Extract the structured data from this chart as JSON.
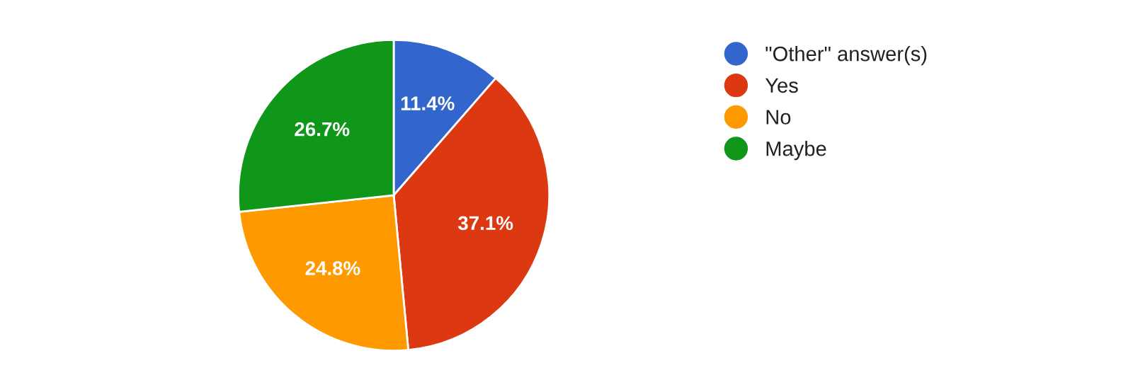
{
  "chart_data": {
    "type": "pie",
    "categories": [
      "\"Other\" answer(s)",
      "Yes",
      "No",
      "Maybe"
    ],
    "values": [
      11.4,
      37.1,
      24.8,
      26.7
    ],
    "value_labels": [
      "11.4%",
      "37.1%",
      "24.8%",
      "26.7%"
    ],
    "colors": [
      "#3366cc",
      "#dc3912",
      "#ff9900",
      "#109618"
    ],
    "legend": "right"
  }
}
